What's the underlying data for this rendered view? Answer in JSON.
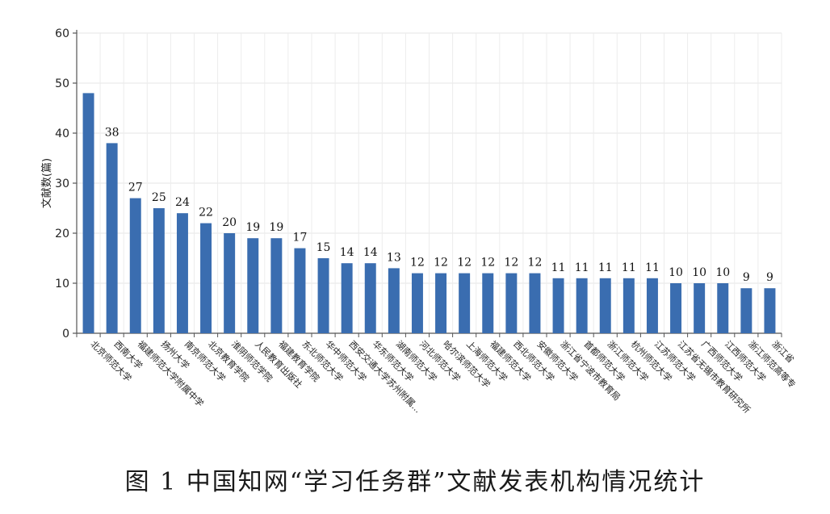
{
  "caption": "图 1 中国知网“学习任务群”文献发表机构情况统计",
  "chart_data": {
    "type": "bar",
    "ylabel": "文献数(篇)",
    "xlabel": "",
    "ylim": [
      0,
      60
    ],
    "yticks": [
      0,
      10,
      20,
      30,
      40,
      50,
      60
    ],
    "grid": true,
    "bar_color": "#3a6db0",
    "categories": [
      "北京师范大学",
      "西南大学",
      "福建师范大学附属中学",
      "扬州大学",
      "南京师范大学",
      "北京教育学院",
      "淮阴师范学院",
      "人民教育出版社",
      "福建教育学院",
      "东北师范大学",
      "华中师范大学",
      "西安交通大学苏州附属...",
      "华东师范大学",
      "湖南师范大学",
      "河北师范大学",
      "哈尔滨师范大学",
      "上海师范大学",
      "福建师范大学",
      "西北师范大学",
      "安徽师范大学",
      "浙江省宁波市教育局",
      "首都师范大学",
      "浙江师范大学",
      "杭州师范大学",
      "江苏师范大学",
      "江苏省无锡市教育研究所",
      "广西师范大学",
      "江西师范大学",
      "浙江师范高等专",
      "浙江省"
    ],
    "values": [
      48,
      38,
      27,
      25,
      24,
      22,
      20,
      19,
      19,
      17,
      15,
      14,
      14,
      13,
      12,
      12,
      12,
      12,
      12,
      12,
      11,
      11,
      11,
      11,
      11,
      10,
      10,
      10,
      9,
      9
    ],
    "data_labels": [
      "",
      "38",
      "27",
      "25",
      "24",
      "22",
      "20",
      "19",
      "19",
      "17",
      "15",
      "14",
      "14",
      "13",
      "12",
      "12",
      "12",
      "12",
      "12",
      "12",
      "11",
      "11",
      "11",
      "11",
      "11",
      "10",
      "10",
      "10",
      "9",
      "9"
    ]
  }
}
